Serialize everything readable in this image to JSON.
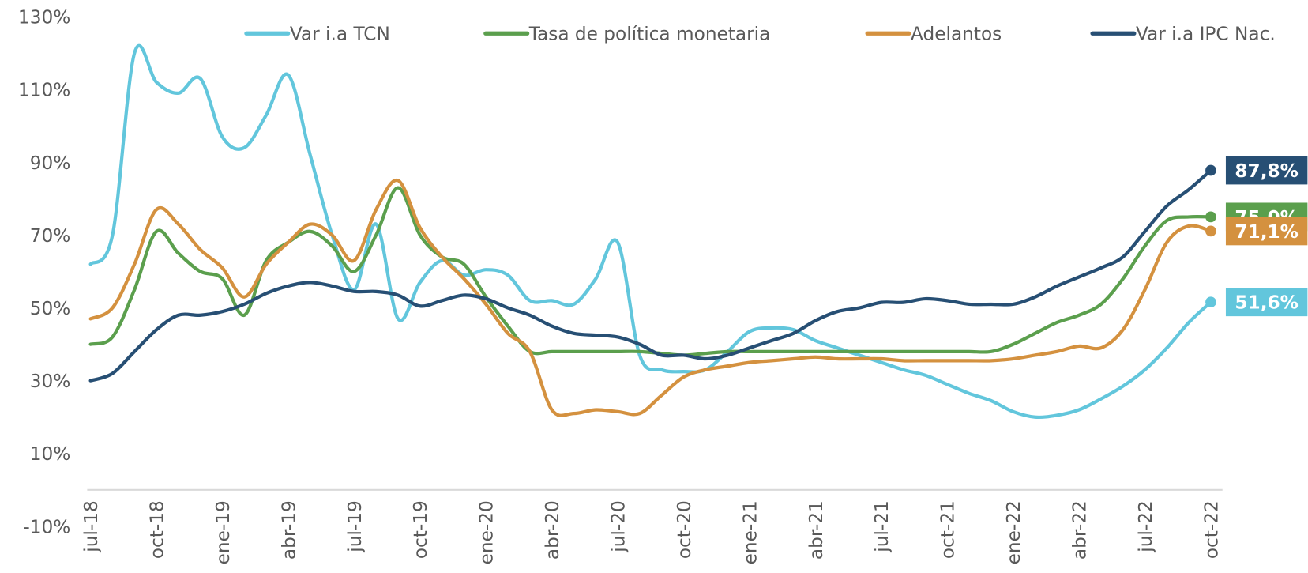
{
  "chart_data": {
    "type": "line",
    "categories": [
      "jul-18",
      null,
      null,
      "oct-18",
      null,
      null,
      "ene-19",
      null,
      null,
      "abr-19",
      null,
      null,
      "jul-19",
      null,
      null,
      "oct-19",
      null,
      null,
      "ene-20",
      null,
      null,
      "abr-20",
      null,
      null,
      "jul-20",
      null,
      null,
      "oct-20",
      null,
      null,
      "ene-21",
      null,
      null,
      "abr-21",
      null,
      null,
      "jul-21",
      null,
      null,
      "oct-21",
      null,
      null,
      "ene-22",
      null,
      null,
      "abr-22",
      null,
      null,
      "jul-22",
      null,
      null,
      "oct-22"
    ],
    "series": [
      {
        "name": "Var i.a TCN",
        "color": "#62c6dc",
        "values": [
          62,
          70,
          120,
          112,
          109,
          113,
          97,
          94,
          103,
          114,
          92,
          70,
          55,
          73,
          47,
          57,
          63,
          59,
          60.5,
          59,
          52,
          52,
          51,
          58,
          68,
          37,
          33,
          32.5,
          33,
          38,
          43.5,
          44.5,
          44,
          41,
          39,
          37,
          35,
          33,
          31.5,
          29,
          26.5,
          24.5,
          21.5,
          20,
          20.5,
          22,
          25,
          28.5,
          33,
          39,
          46,
          51.6
        ],
        "value_labels": [
          null,
          null,
          null,
          null,
          null,
          null,
          null,
          null,
          null,
          null,
          null,
          null,
          null,
          null,
          null,
          null,
          null,
          null,
          null,
          null,
          null,
          null,
          null,
          null,
          null,
          null,
          null,
          null,
          null,
          null,
          null,
          null,
          null,
          null,
          null,
          null,
          null,
          null,
          null,
          null,
          null,
          null,
          null,
          null,
          null,
          null,
          null,
          null,
          null,
          null,
          null,
          "51,6%"
        ]
      },
      {
        "name": "Tasa de política monetaria",
        "color": "#5b9f4d",
        "values": [
          40,
          42,
          55,
          71,
          65,
          60,
          58,
          48,
          63,
          68,
          71,
          67,
          60,
          70,
          83,
          70,
          64,
          62,
          53,
          45,
          38,
          38,
          38,
          38,
          38,
          38,
          37.5,
          37,
          37.5,
          38,
          38,
          38,
          38,
          38,
          38,
          38,
          38,
          38,
          38,
          38,
          38,
          38,
          40,
          43,
          46,
          48,
          51,
          58,
          67,
          74,
          75,
          75
        ],
        "value_labels": [
          null,
          null,
          null,
          null,
          null,
          null,
          null,
          null,
          null,
          null,
          null,
          null,
          null,
          null,
          null,
          null,
          null,
          null,
          null,
          null,
          null,
          null,
          null,
          null,
          null,
          null,
          null,
          null,
          null,
          null,
          null,
          null,
          null,
          null,
          null,
          null,
          null,
          null,
          null,
          null,
          null,
          null,
          null,
          null,
          null,
          null,
          null,
          null,
          null,
          null,
          null,
          "75,0%"
        ]
      },
      {
        "name": "Adelantos",
        "color": "#d4913f",
        "values": [
          47,
          50,
          62,
          77,
          73,
          66,
          61,
          53,
          62,
          68,
          73,
          70,
          63,
          77,
          85,
          72,
          64,
          58,
          51,
          43,
          38,
          22,
          21,
          22,
          21.5,
          21,
          26,
          31,
          33,
          34,
          35,
          35.5,
          36,
          36.5,
          36,
          36,
          36,
          35.5,
          35.5,
          35.5,
          35.5,
          35.5,
          36,
          37,
          38,
          39.5,
          39,
          44,
          55,
          68,
          72.5,
          71.1
        ],
        "value_labels": [
          null,
          null,
          null,
          null,
          null,
          null,
          null,
          null,
          null,
          null,
          null,
          null,
          null,
          null,
          null,
          null,
          null,
          null,
          null,
          null,
          null,
          null,
          null,
          null,
          null,
          null,
          null,
          null,
          null,
          null,
          null,
          null,
          null,
          null,
          null,
          null,
          null,
          null,
          null,
          null,
          null,
          null,
          null,
          null,
          null,
          null,
          null,
          null,
          null,
          null,
          null,
          "71,1%"
        ]
      },
      {
        "name": "Var i.a IPC Nac.",
        "color": "#274f74",
        "values": [
          30,
          32,
          38,
          44,
          48,
          48,
          49,
          51,
          54,
          56,
          57,
          56,
          54.5,
          54.5,
          53.5,
          50.5,
          52,
          53.5,
          52.5,
          50,
          48,
          45,
          43,
          42.5,
          42,
          40,
          37,
          37,
          36,
          37,
          39,
          41,
          43,
          46.5,
          49,
          50,
          51.5,
          51.5,
          52.5,
          52,
          51,
          51,
          51,
          53,
          56,
          58.5,
          61,
          64,
          71,
          78,
          82.5,
          87.8
        ],
        "value_labels": [
          null,
          null,
          null,
          null,
          null,
          null,
          null,
          null,
          null,
          null,
          null,
          null,
          null,
          null,
          null,
          null,
          null,
          null,
          null,
          null,
          null,
          null,
          null,
          null,
          null,
          null,
          null,
          null,
          null,
          null,
          null,
          null,
          null,
          null,
          null,
          null,
          null,
          null,
          null,
          null,
          null,
          null,
          null,
          null,
          null,
          null,
          null,
          null,
          null,
          null,
          null,
          "87,8%"
        ]
      }
    ],
    "ylim": [
      -10,
      130
    ],
    "yticks": [
      {
        "value": -10,
        "label": "-10%"
      },
      {
        "value": 10,
        "label": "10%"
      },
      {
        "value": 30,
        "label": "30%"
      },
      {
        "value": 50,
        "label": "50%"
      },
      {
        "value": 70,
        "label": "70%"
      },
      {
        "value": 90,
        "label": "90%"
      },
      {
        "value": 110,
        "label": "110%"
      },
      {
        "value": 130,
        "label": "130%"
      }
    ],
    "grid": false,
    "legend": "top"
  }
}
